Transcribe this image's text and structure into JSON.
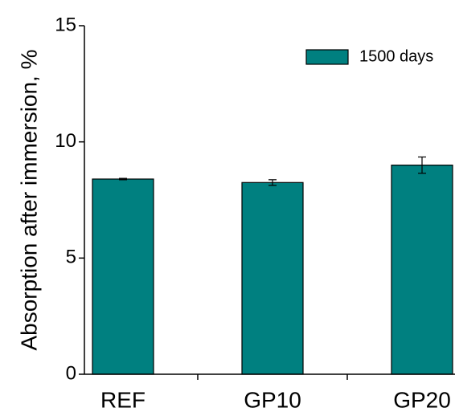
{
  "chart_data": {
    "type": "bar",
    "y_label": "Absorption after immersion, %",
    "categories": [
      "REF",
      "GP10",
      "GP20"
    ],
    "series": [
      {
        "name": "1500 days",
        "color": "#008080",
        "values": [
          8.4,
          8.25,
          9.0
        ],
        "errors": [
          0.03,
          0.12,
          0.35
        ]
      }
    ],
    "ylim": [
      0,
      15
    ],
    "yticks": [
      0,
      5,
      10,
      15
    ],
    "legend": "top-right"
  }
}
